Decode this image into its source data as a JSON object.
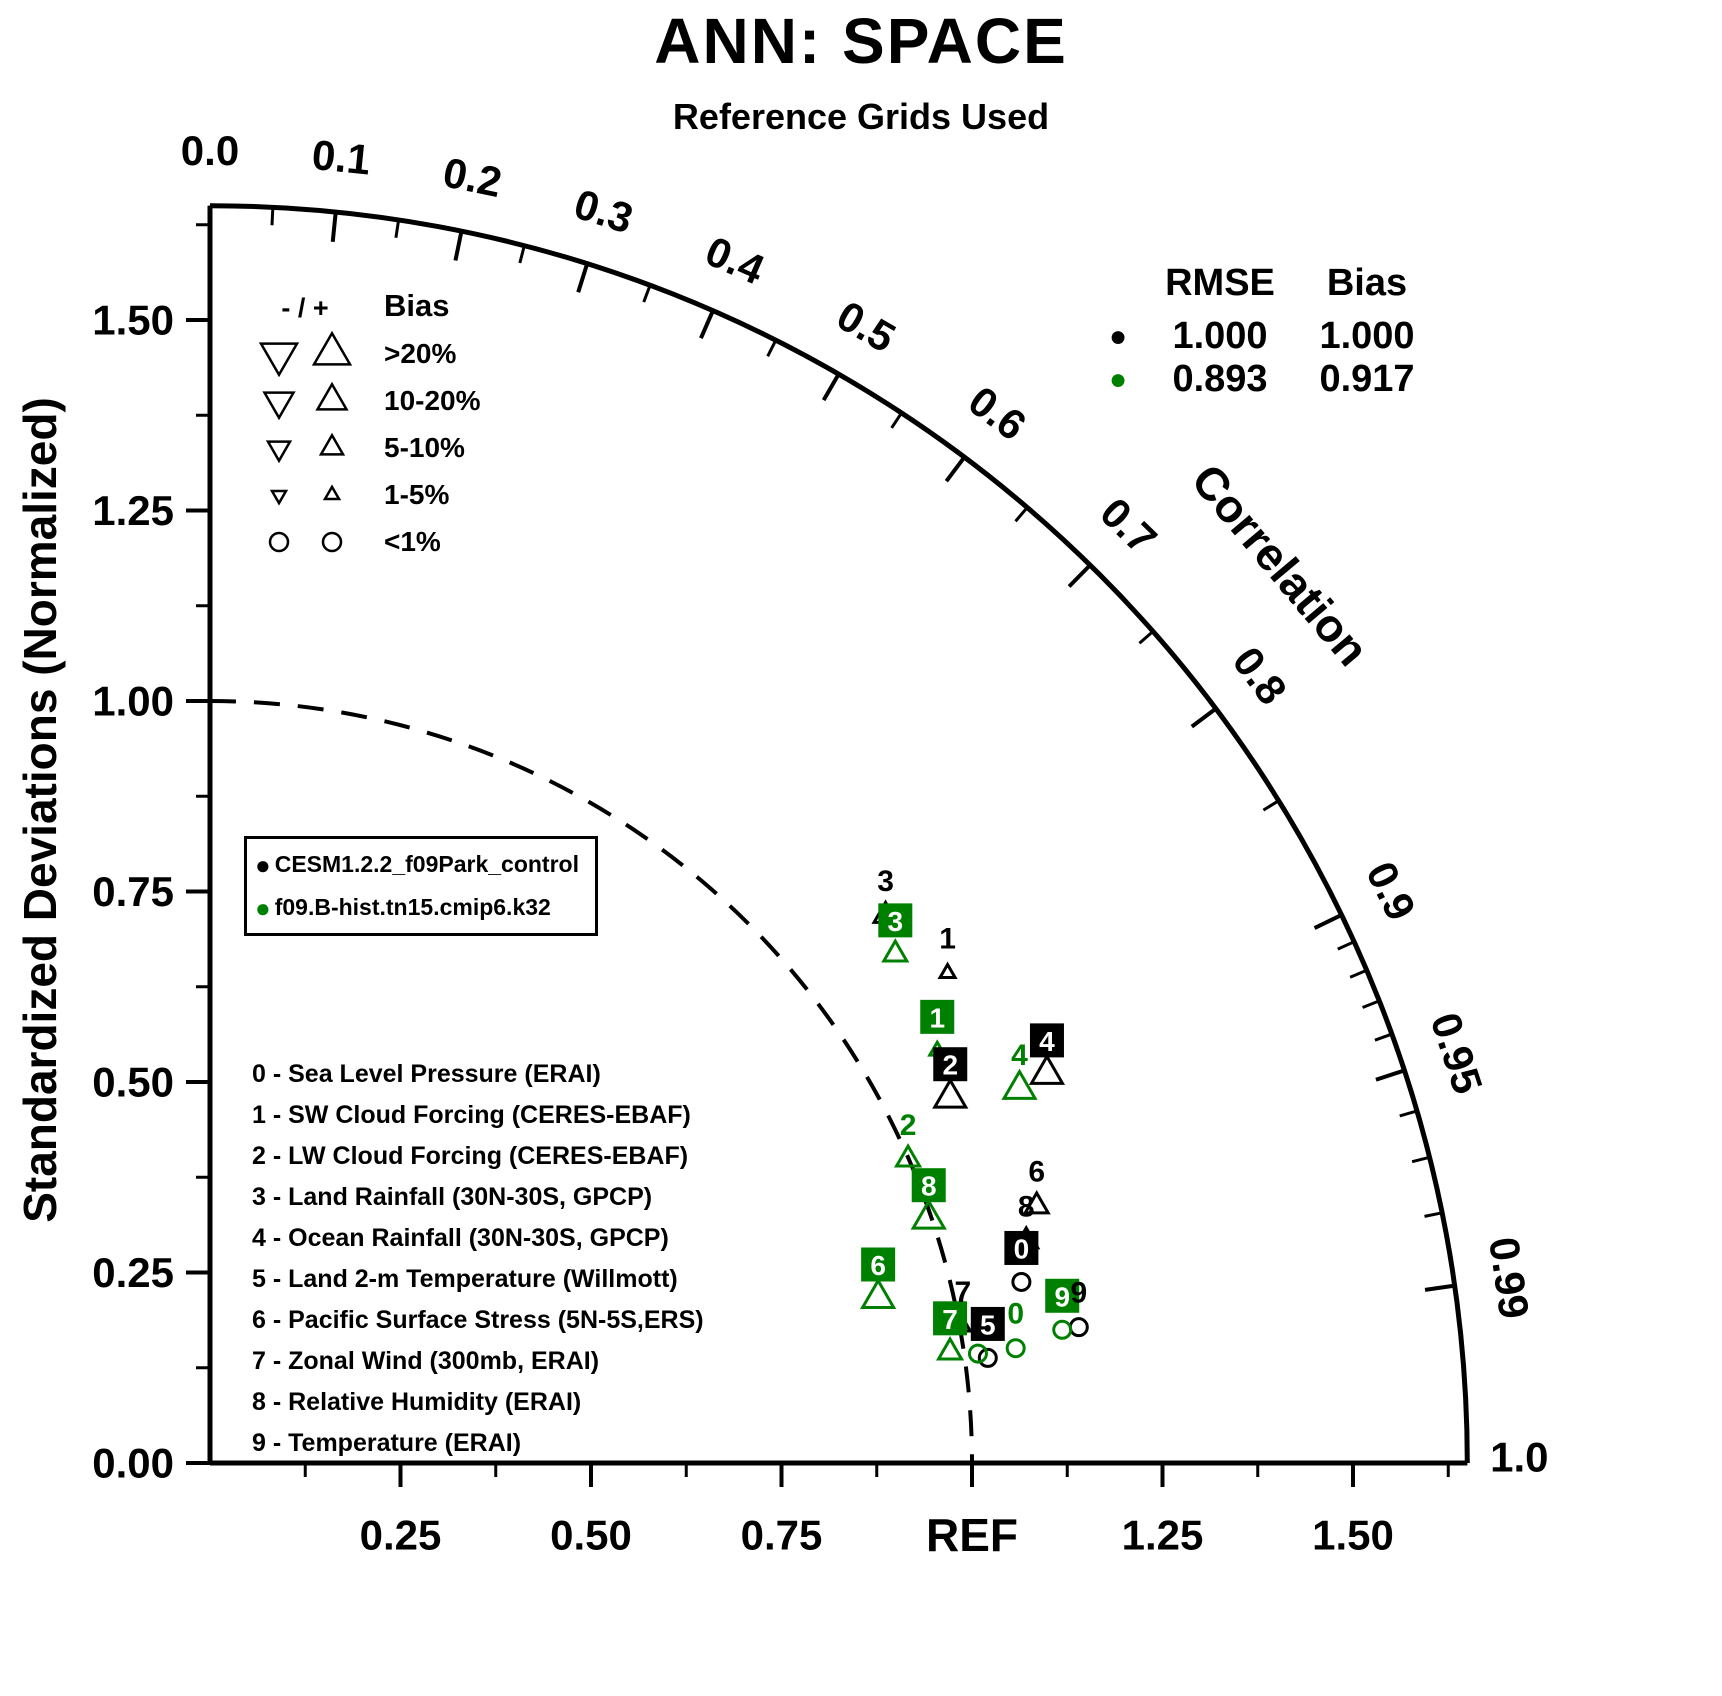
{
  "chart_data": {
    "type": "taylor",
    "title": "ANN: SPACE",
    "subtitle": "Reference Grids Used",
    "y_axis_title": "Standardized Deviations (Normalized)",
    "correlation_label": "Correlation",
    "rmax": 1.65,
    "ref_std": 1.0,
    "y_ticks": [
      {
        "v": 0.0,
        "label": "0.00"
      },
      {
        "v": 0.25,
        "label": "0.25"
      },
      {
        "v": 0.5,
        "label": "0.50"
      },
      {
        "v": 0.75,
        "label": "0.75"
      },
      {
        "v": 1.0,
        "label": "1.00"
      },
      {
        "v": 1.25,
        "label": "1.25"
      },
      {
        "v": 1.5,
        "label": "1.50"
      }
    ],
    "x_ticks": [
      {
        "v": 0.25,
        "label": "0.25"
      },
      {
        "v": 0.5,
        "label": "0.50"
      },
      {
        "v": 0.75,
        "label": "0.75"
      },
      {
        "v": 1.0,
        "label": "REF"
      },
      {
        "v": 1.25,
        "label": "1.25"
      },
      {
        "v": 1.5,
        "label": "1.50"
      }
    ],
    "correlation_ticks": [
      {
        "v": 0.0,
        "label": "0.0"
      },
      {
        "v": 0.1,
        "label": "0.1"
      },
      {
        "v": 0.2,
        "label": "0.2"
      },
      {
        "v": 0.3,
        "label": "0.3"
      },
      {
        "v": 0.4,
        "label": "0.4"
      },
      {
        "v": 0.5,
        "label": "0.5"
      },
      {
        "v": 0.6,
        "label": "0.6"
      },
      {
        "v": 0.7,
        "label": "0.7"
      },
      {
        "v": 0.8,
        "label": "0.8"
      },
      {
        "v": 0.9,
        "label": "0.9"
      },
      {
        "v": 0.95,
        "label": "0.95"
      },
      {
        "v": 0.99,
        "label": "0.99"
      },
      {
        "v": 1.0,
        "label": "1.0"
      }
    ],
    "correlation_minor_ticks": [
      0.05,
      0.15,
      0.25,
      0.35,
      0.45,
      0.55,
      0.65,
      0.75,
      0.85,
      0.91,
      0.92,
      0.93,
      0.94,
      0.96,
      0.97,
      0.98
    ],
    "series": [
      {
        "name": "CESM1.2.2_f09Park_control",
        "color": "#000000",
        "rmse": "1.000",
        "bias": "1.000",
        "points": [
          {
            "id": "0",
            "corr": 0.976,
            "std": 1.091,
            "bias_sign": "+",
            "bias_class": "<1%",
            "boxed": true
          },
          {
            "id": "1",
            "corr": 0.833,
            "std": 1.162,
            "bias_sign": "+",
            "bias_class": "1-5%",
            "boxed": false
          },
          {
            "id": "2",
            "corr": 0.897,
            "std": 1.083,
            "bias_sign": "+",
            "bias_class": "10-20%",
            "boxed": true
          },
          {
            "id": "3",
            "corr": 0.777,
            "std": 1.141,
            "bias_sign": "+",
            "bias_class": "5-10%",
            "boxed": false
          },
          {
            "id": "4",
            "corr": 0.907,
            "std": 1.211,
            "bias_sign": "+",
            "bias_class": "10-20%",
            "boxed": true
          },
          {
            "id": "5",
            "corr": 0.991,
            "std": 1.03,
            "bias_sign": "+",
            "bias_class": "<1%",
            "boxed": true
          },
          {
            "id": "6",
            "corr": 0.955,
            "std": 1.136,
            "bias_sign": "+",
            "bias_class": "5-10%",
            "boxed": false
          },
          {
            "id": "7",
            "corr": 0.984,
            "std": 1.004,
            "bias_sign": "+",
            "bias_class": "1-5%",
            "boxed": false
          },
          {
            "id": "8",
            "corr": 0.965,
            "std": 1.11,
            "bias_sign": "+",
            "bias_class": "5-10%",
            "boxed": false
          },
          {
            "id": "9",
            "corr": 0.988,
            "std": 1.154,
            "bias_sign": "+",
            "bias_class": "<1%",
            "boxed": false
          }
        ]
      },
      {
        "name": "f09.B-hist.tn15.cmip6.k32",
        "color": "#008000",
        "rmse": "0.893",
        "bias": "0.917",
        "points": [
          {
            "id": "0",
            "corr": 0.99,
            "std": 1.068,
            "bias_sign": "+",
            "bias_class": "<1%",
            "boxed": false
          },
          {
            "id": "1",
            "corr": 0.87,
            "std": 1.097,
            "bias_sign": "+",
            "bias_class": "1-5%",
            "boxed": true
          },
          {
            "id": "2",
            "corr": 0.917,
            "std": 0.999,
            "bias_sign": "+",
            "bias_class": "5-10%",
            "boxed": false
          },
          {
            "id": "3",
            "corr": 0.803,
            "std": 1.12,
            "bias_sign": "+",
            "bias_class": "5-10%",
            "boxed": true
          },
          {
            "id": "4",
            "corr": 0.908,
            "std": 1.17,
            "bias_sign": "+",
            "bias_class": "10-20%",
            "boxed": false
          },
          {
            "id": "5",
            "corr": 0.99,
            "std": 1.018,
            "bias_sign": "+",
            "bias_class": "<1%",
            "boxed": false
          },
          {
            "id": "6",
            "corr": 0.971,
            "std": 0.903,
            "bias_sign": "+",
            "bias_class": "10-20%",
            "boxed": true
          },
          {
            "id": "7",
            "corr": 0.989,
            "std": 0.982,
            "bias_sign": "+",
            "bias_class": "5-10%",
            "boxed": true
          },
          {
            "id": "8",
            "corr": 0.947,
            "std": 0.996,
            "bias_sign": "+",
            "bias_class": "10-20%",
            "boxed": true
          },
          {
            "id": "9",
            "corr": 0.988,
            "std": 1.132,
            "bias_sign": "+",
            "bias_class": "<1%",
            "boxed": true
          }
        ]
      }
    ]
  },
  "rmse_legend": {
    "rmse_header": "RMSE",
    "bias_header": "Bias"
  },
  "bias_legend": {
    "symbol_header": "- / +",
    "label_header": "Bias",
    "classes": [
      {
        "size_class": ">20%",
        "label": ">20%"
      },
      {
        "size_class": "10-20%",
        "label": "10-20%"
      },
      {
        "size_class": "5-10%",
        "label": "5-10%"
      },
      {
        "size_class": "1-5%",
        "label": "1-5%"
      },
      {
        "size_class": "<1%",
        "label": "<1%"
      }
    ]
  },
  "variables": [
    "0 - Sea Level Pressure (ERAI)",
    "1 - SW Cloud Forcing (CERES-EBAF)",
    "2 - LW Cloud Forcing (CERES-EBAF)",
    "3 - Land Rainfall (30N-30S, GPCP)",
    "4 - Ocean Rainfall (30N-30S, GPCP)",
    "5 - Land 2-m Temperature (Willmott)",
    "6 - Pacific Surface Stress (5N-5S,ERS)",
    "7 - Zonal Wind (300mb, ERAI)",
    "8 - Relative Humidity (ERAI)",
    "9 - Temperature (ERAI)"
  ]
}
